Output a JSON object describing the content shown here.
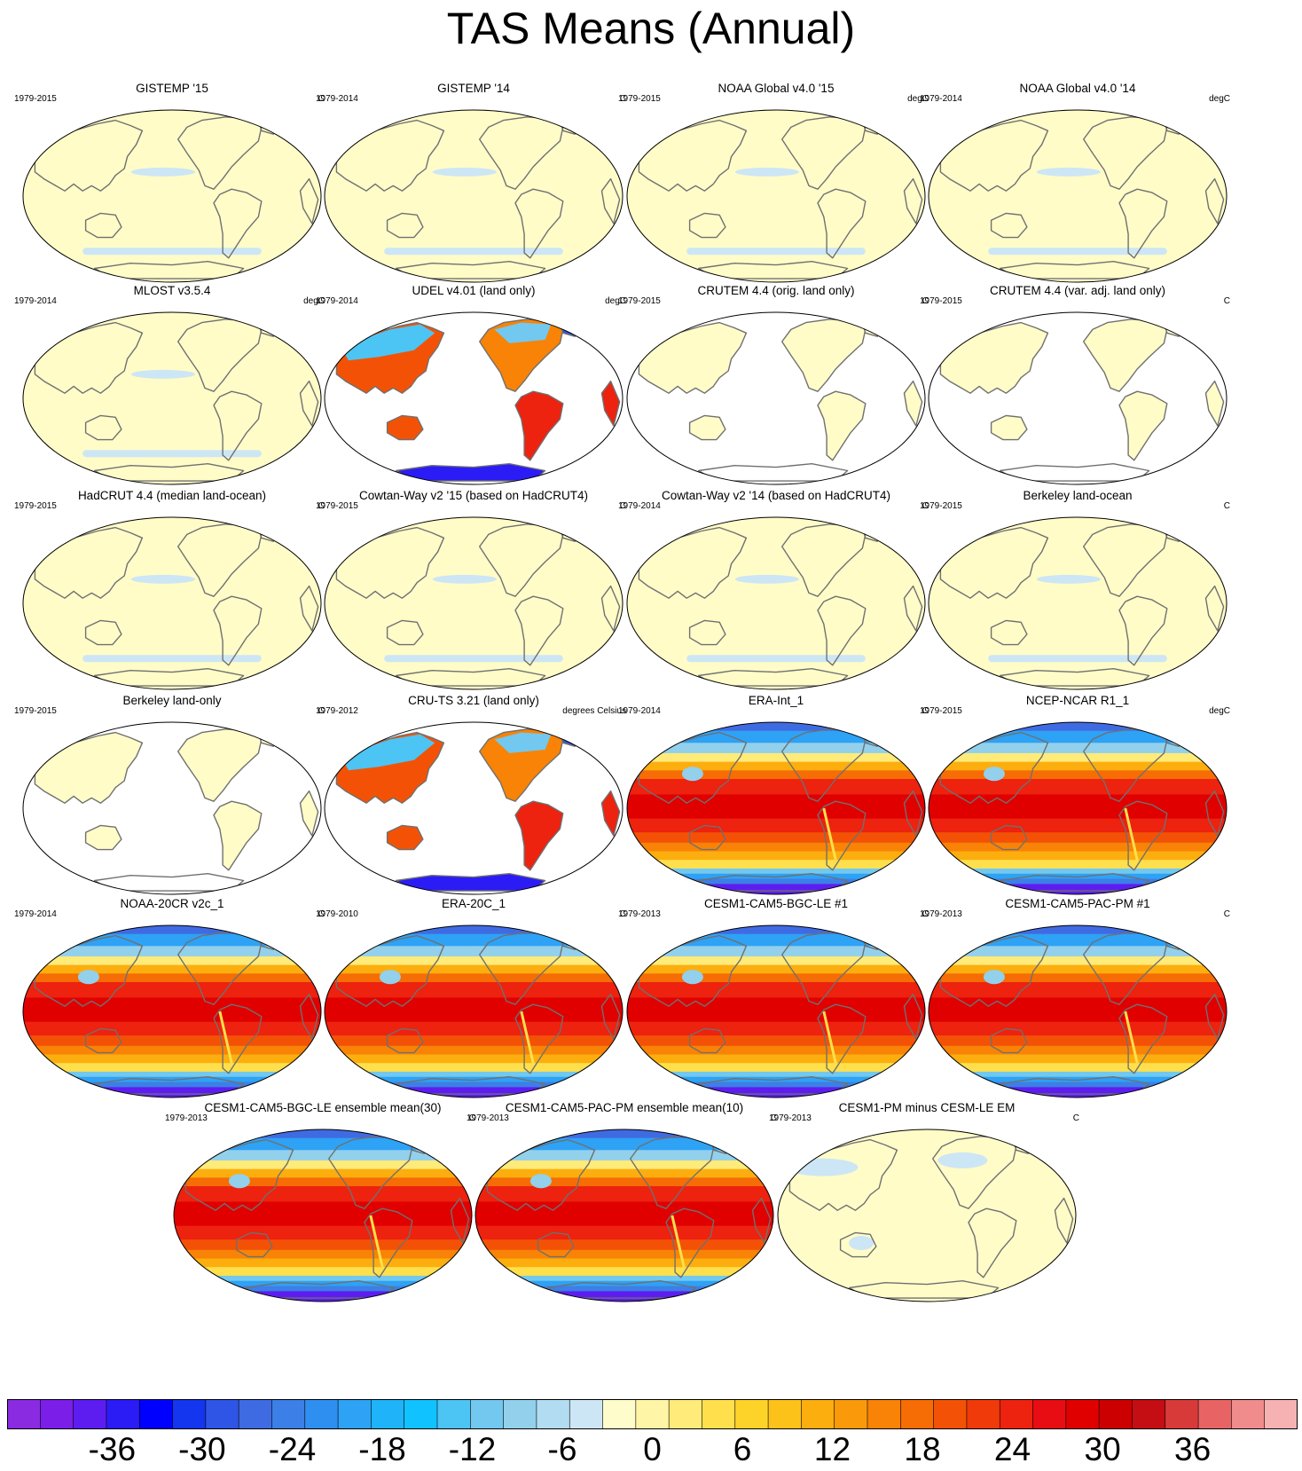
{
  "chart_data": {
    "type": "heatmap",
    "title": "TAS Means (Annual)",
    "projection": "robinson",
    "colorbar": {
      "labels": [
        "-36",
        "-30",
        "-24",
        "-18",
        "-12",
        "-6",
        "0",
        "6",
        "12",
        "18",
        "24",
        "30",
        "36"
      ],
      "min": -42,
      "max": 42,
      "interval": 2,
      "colors": [
        "#8a2be2",
        "#7a1ee8",
        "#5d1df0",
        "#2b1cf5",
        "#0000ff",
        "#1436ee",
        "#2f55e6",
        "#3f6be2",
        "#3c7fe6",
        "#2f8ff0",
        "#2ea2f5",
        "#1fb3fa",
        "#10c2ff",
        "#4cc4f4",
        "#72c8ee",
        "#92d0ec",
        "#b2dcf2",
        "#cde6f5",
        "#fffccc",
        "#fff5a6",
        "#ffeb7a",
        "#ffe04c",
        "#fed329",
        "#fdc21a",
        "#fcae0f",
        "#fa990a",
        "#f88306",
        "#f66c05",
        "#f35206",
        "#f03a0a",
        "#ed220f",
        "#e80d12",
        "#e00000",
        "#cc0000",
        "#c40e14",
        "#d83a3a",
        "#e86464",
        "#f08c8c",
        "#f6b2b2"
      ]
    },
    "panels": [
      {
        "title": "GISTEMP '15",
        "period": "1979-2015",
        "units": "C",
        "field": "anomaly"
      },
      {
        "title": "GISTEMP '14",
        "period": "1979-2014",
        "units": "C",
        "field": "anomaly"
      },
      {
        "title": "NOAA Global v4.0 '15",
        "period": "1979-2015",
        "units": "degC",
        "field": "anomaly"
      },
      {
        "title": "NOAA Global v4.0 '14",
        "period": "1979-2014",
        "units": "degC",
        "field": "anomaly"
      },
      {
        "title": "MLOST v3.5.4",
        "period": "1979-2014",
        "units": "degC",
        "field": "anomaly"
      },
      {
        "title": "UDEL v4.01 (land only)",
        "period": "1979-2014",
        "units": "degC",
        "field": "land_absolute"
      },
      {
        "title": "CRUTEM 4.4 (orig. land only)",
        "period": "1979-2015",
        "units": "C",
        "field": "land_anomaly"
      },
      {
        "title": "CRUTEM 4.4 (var. adj. land only)",
        "period": "1979-2015",
        "units": "C",
        "field": "land_anomaly"
      },
      {
        "title": "HadCRUT 4.4 (median land-ocean)",
        "period": "1979-2015",
        "units": "C",
        "field": "anomaly"
      },
      {
        "title": "Cowtan-Way v2 '15 (based on HadCRUT4)",
        "period": "1979-2015",
        "units": "C",
        "field": "anomaly"
      },
      {
        "title": "Cowtan-Way v2 '14 (based on HadCRUT4)",
        "period": "1979-2014",
        "units": "C",
        "field": "anomaly"
      },
      {
        "title": "Berkeley land-ocean",
        "period": "1979-2015",
        "units": "C",
        "field": "anomaly"
      },
      {
        "title": "Berkeley land-only",
        "period": "1979-2015",
        "units": "C",
        "field": "land_anomaly"
      },
      {
        "title": "CRU-TS 3.21 (land only)",
        "period": "1979-2012",
        "units": "degrees Celsius",
        "field": "land_absolute"
      },
      {
        "title": "ERA-Int_1",
        "period": "1979-2014",
        "units": "C",
        "field": "absolute"
      },
      {
        "title": "NCEP-NCAR R1_1",
        "period": "1979-2015",
        "units": "degC",
        "field": "absolute"
      },
      {
        "title": "NOAA-20CR v2c_1",
        "period": "1979-2014",
        "units": "C",
        "field": "absolute"
      },
      {
        "title": "ERA-20C_1",
        "period": "1979-2010",
        "units": "C",
        "field": "absolute"
      },
      {
        "title": "CESM1-CAM5-BGC-LE #1",
        "period": "1979-2013",
        "units": "C",
        "field": "absolute"
      },
      {
        "title": "CESM1-CAM5-PAC-PM #1",
        "period": "1979-2013",
        "units": "C",
        "field": "absolute"
      },
      {
        "title": "CESM1-CAM5-BGC-LE ensemble mean(30)",
        "period": "1979-2013",
        "units": "C",
        "field": "absolute"
      },
      {
        "title": "CESM1-CAM5-PAC-PM ensemble mean(10)",
        "period": "1979-2013",
        "units": "C",
        "field": "absolute"
      },
      {
        "title": "CESM1-PM minus CESM-LE EM",
        "period": "1979-2013",
        "units": "C",
        "field": "difference"
      }
    ]
  }
}
